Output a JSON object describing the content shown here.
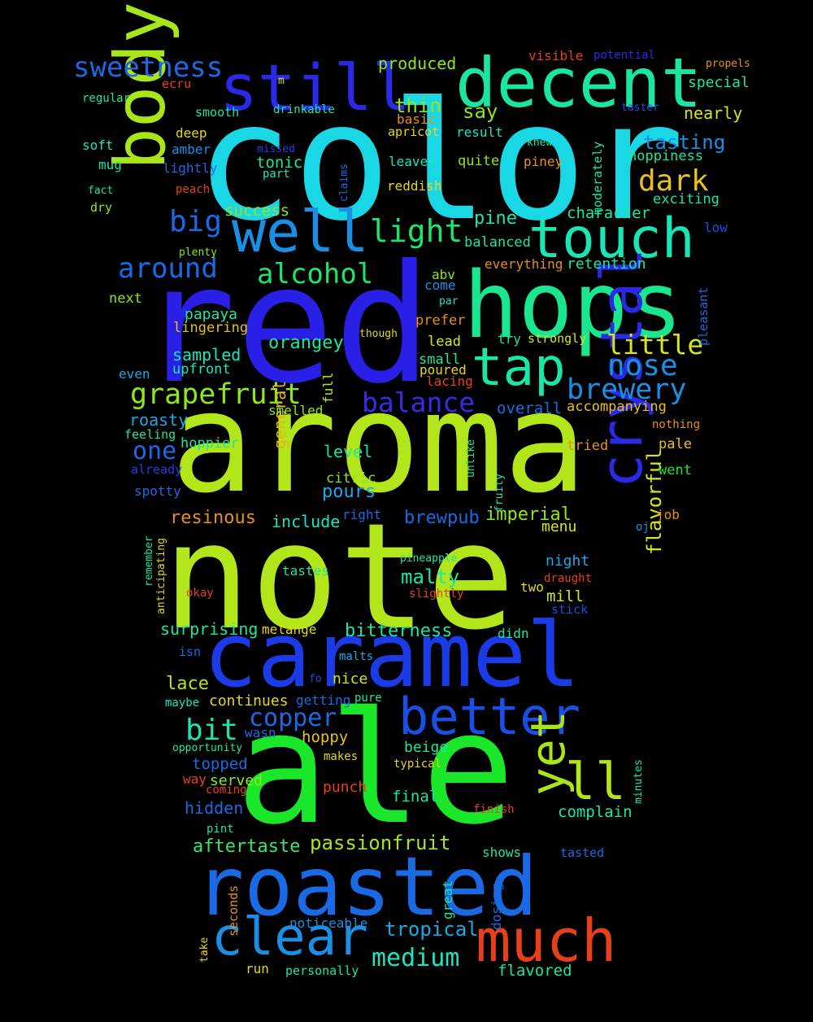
{
  "words": [
    {
      "text": "color",
      "color": "#1ad7e6"
    },
    {
      "text": "red",
      "color": "#2a1fe6"
    },
    {
      "text": "aroma",
      "color": "#b3e61a"
    },
    {
      "text": "note",
      "color": "#b3e61a"
    },
    {
      "text": "ale",
      "color": "#1ae62a"
    },
    {
      "text": "hops",
      "color": "#1ae68f"
    },
    {
      "text": "caramel",
      "color": "#1a3be6"
    },
    {
      "text": "roasted",
      "color": "#1a6ae6"
    },
    {
      "text": "decent",
      "color": "#1ae69f"
    },
    {
      "text": "still",
      "color": "#2a2ae6"
    },
    {
      "text": "body",
      "color": "#a8e61a"
    },
    {
      "text": "well",
      "color": "#1a8fe6"
    },
    {
      "text": "touch",
      "color": "#1ae6b3"
    },
    {
      "text": "tap",
      "color": "#1ae6a8"
    },
    {
      "text": "crystal",
      "color": "#2a2ae6"
    },
    {
      "text": "better",
      "color": "#1a4fe6"
    },
    {
      "text": "yet",
      "color": "#a8e61a"
    },
    {
      "text": "ll",
      "color": "#b3e61a"
    },
    {
      "text": "much",
      "color": "#e6401a"
    },
    {
      "text": "clear",
      "color": "#1a8fe6"
    },
    {
      "text": "sweetness",
      "color": "#1a6ae6"
    },
    {
      "text": "dark",
      "color": "#e6c21a"
    },
    {
      "text": "big",
      "color": "#1a6ae6"
    },
    {
      "text": "light",
      "color": "#1ae66a"
    },
    {
      "text": "around",
      "color": "#1a6ae6"
    },
    {
      "text": "alcohol",
      "color": "#1ae66a"
    },
    {
      "text": "grapefruit",
      "color": "#8fe61a"
    },
    {
      "text": "balance",
      "color": "#3a2ae6"
    },
    {
      "text": "little",
      "color": "#d7e61a"
    },
    {
      "text": "nose",
      "color": "#1a8fe6"
    },
    {
      "text": "brewery",
      "color": "#1a8fe6"
    },
    {
      "text": "one",
      "color": "#1a6ae6"
    },
    {
      "text": "bit",
      "color": "#1ae6b3"
    },
    {
      "text": "copper",
      "color": "#1a6ae6"
    },
    {
      "text": "medium",
      "color": "#1ae6c2"
    },
    {
      "text": "passionfruit",
      "color": "#a8e61a"
    },
    {
      "text": "aftertaste",
      "color": "#3ae66a"
    },
    {
      "text": "tropical",
      "color": "#1aa8e6"
    },
    {
      "text": "flavorful",
      "color": "#d7e61a"
    },
    {
      "text": "bitterness",
      "color": "#1ae6a8"
    },
    {
      "text": "malty",
      "color": "#1ae6a8"
    },
    {
      "text": "imperial",
      "color": "#8fe61a"
    },
    {
      "text": "brewpub",
      "color": "#1a6ae6"
    },
    {
      "text": "resinous",
      "color": "#e6901a"
    },
    {
      "text": "pours",
      "color": "#1aa8e6"
    },
    {
      "text": "orangey",
      "color": "#1ae69f"
    },
    {
      "text": "sampled",
      "color": "#1ae6c2"
    },
    {
      "text": "tasting",
      "color": "#1a8fe6"
    },
    {
      "text": "produced",
      "color": "#8fe61a"
    },
    {
      "text": "thin",
      "color": "#8fe61a"
    },
    {
      "text": "say",
      "color": "#8fe61a"
    },
    {
      "text": "pine",
      "color": "#1ae6b3"
    },
    {
      "text": "character",
      "color": "#1ae69f"
    },
    {
      "text": "success",
      "color": "#8fe61a"
    },
    {
      "text": "nearly",
      "color": "#d7e61a"
    },
    {
      "text": "special",
      "color": "#1ae69f"
    },
    {
      "text": "hoppiness",
      "color": "#1ae69f"
    },
    {
      "text": "exciting",
      "color": "#1ae6a8"
    },
    {
      "text": "retention",
      "color": "#1ae69f"
    },
    {
      "text": "balanced",
      "color": "#1ae69f"
    },
    {
      "text": "everything",
      "color": "#e6901a"
    },
    {
      "text": "accompanying",
      "color": "#e6c21a"
    },
    {
      "text": "general",
      "color": "#e6b31a"
    },
    {
      "text": "level",
      "color": "#1ae69f"
    },
    {
      "text": "citric",
      "color": "#8fe61a"
    },
    {
      "text": "include",
      "color": "#1ae6c2"
    },
    {
      "text": "roasty",
      "color": "#1aa8e6"
    },
    {
      "text": "hoppier",
      "color": "#1ae69f"
    },
    {
      "text": "surprising",
      "color": "#1ae69f"
    },
    {
      "text": "lace",
      "color": "#b3e61a"
    },
    {
      "text": "copper-nice",
      "color": "#d7e61a"
    },
    {
      "text": "continues",
      "color": "#e6d71a"
    },
    {
      "text": "hoppy",
      "color": "#e6c21a"
    },
    {
      "text": "topped",
      "color": "#1a6ae6"
    },
    {
      "text": "hidden",
      "color": "#1a6ae6"
    },
    {
      "text": "served",
      "color": "#8fe61a"
    },
    {
      "text": "punch",
      "color": "#e6401a"
    },
    {
      "text": "final",
      "color": "#1ae69f"
    },
    {
      "text": "complain",
      "color": "#1ae6a8"
    },
    {
      "text": "beige",
      "color": "#1ae69f"
    },
    {
      "text": "papaya",
      "color": "#1ae6a8"
    },
    {
      "text": "lingering",
      "color": "#e6c21a"
    },
    {
      "text": "upfront",
      "color": "#1ae6c2"
    },
    {
      "text": "next",
      "color": "#8fe61a"
    },
    {
      "text": "even",
      "color": "#1aa8e6"
    },
    {
      "text": "feeling",
      "color": "#1ae6a8"
    },
    {
      "text": "already",
      "color": "#2a3ae6"
    },
    {
      "text": "spotty",
      "color": "#1a6ae6"
    },
    {
      "text": "smelled",
      "color": "#8fe61a"
    },
    {
      "text": "full",
      "color": "#b3e61a"
    },
    {
      "text": "abv",
      "color": "#8fe61a"
    },
    {
      "text": "come",
      "color": "#1a8fe6"
    },
    {
      "text": "par",
      "color": "#1ae6c2"
    },
    {
      "text": "prefer",
      "color": "#e6901a"
    },
    {
      "text": "lead",
      "color": "#d7e61a"
    },
    {
      "text": "small",
      "color": "#1ae6a8"
    },
    {
      "text": "poured",
      "color": "#e6d71a"
    },
    {
      "text": "lacing",
      "color": "#e6401a"
    },
    {
      "text": "overall",
      "color": "#1a6ae6"
    },
    {
      "text": "try",
      "color": "#1ae69f"
    },
    {
      "text": "strongly",
      "color": "#d7e61a"
    },
    {
      "text": "tried",
      "color": "#e6901a"
    },
    {
      "text": "pale",
      "color": "#e6c21a"
    },
    {
      "text": "went",
      "color": "#1ae62a"
    },
    {
      "text": "nothing",
      "color": "#e6901a"
    },
    {
      "text": "job",
      "color": "#e6901a"
    },
    {
      "text": "oj",
      "color": "#1a8fe6"
    },
    {
      "text": "menu",
      "color": "#d7e61a"
    },
    {
      "text": "night",
      "color": "#1aa8e6"
    },
    {
      "text": "two",
      "color": "#e6d71a"
    },
    {
      "text": "draught",
      "color": "#e6401a"
    },
    {
      "text": "mill",
      "color": "#d7e61a"
    },
    {
      "text": "stick",
      "color": "#1a4fe6"
    },
    {
      "text": "slightly",
      "color": "#e6401a"
    },
    {
      "text": "tastes",
      "color": "#1ae69f"
    },
    {
      "text": "pineapple",
      "color": "#1ae6a8"
    },
    {
      "text": "melange",
      "color": "#e6d71a"
    },
    {
      "text": "didn",
      "color": "#1ae69f"
    },
    {
      "text": "isn",
      "color": "#1a6ae6"
    },
    {
      "text": "malts",
      "color": "#1aa8e6"
    },
    {
      "text": "fo",
      "color": "#1a4fe6"
    },
    {
      "text": "maybe",
      "color": "#1ae6c2"
    },
    {
      "text": "getting",
      "color": "#1a6ae6"
    },
    {
      "text": "pure",
      "color": "#1ae69f"
    },
    {
      "text": "wasn",
      "color": "#1a6ae6"
    },
    {
      "text": "opportunity",
      "color": "#1ae6a8"
    },
    {
      "text": "makes",
      "color": "#e6d71a"
    },
    {
      "text": "typical",
      "color": "#e6d71a"
    },
    {
      "text": "way",
      "color": "#e6401a"
    },
    {
      "text": "coming",
      "color": "#e6401a"
    },
    {
      "text": "finish",
      "color": "#e6401a"
    },
    {
      "text": "pint",
      "color": "#1ae69f"
    },
    {
      "text": "shows",
      "color": "#1ae69f"
    },
    {
      "text": "tasted",
      "color": "#1a6ae6"
    },
    {
      "text": "seconds",
      "color": "#e6901a"
    },
    {
      "text": "great",
      "color": "#1ae69f"
    },
    {
      "text": "dosing",
      "color": "#1a6ae6"
    },
    {
      "text": "noticeable",
      "color": "#1a8fe6"
    },
    {
      "text": "take",
      "color": "#e6d71a"
    },
    {
      "text": "run",
      "color": "#e6d71a"
    },
    {
      "text": "personally",
      "color": "#1ae6a8"
    },
    {
      "text": "flavored",
      "color": "#1ae69f"
    },
    {
      "text": "minutes",
      "color": "#1ae69f"
    },
    {
      "text": "anticipating",
      "color": "#e6d71a"
    },
    {
      "text": "remember",
      "color": "#1ae69f"
    },
    {
      "text": "okay",
      "color": "#e6401a"
    },
    {
      "text": "unlike",
      "color": "#1ae69f"
    },
    {
      "text": "fruity",
      "color": "#1ae6a8"
    },
    {
      "text": "right",
      "color": "#1a6ae6"
    },
    {
      "text": "though",
      "color": "#e6d71a"
    },
    {
      "text": "plenty",
      "color": "#8fe61a"
    },
    {
      "text": "pleasant",
      "color": "#1a6ae6"
    },
    {
      "text": "low",
      "color": "#1a4fe6"
    },
    {
      "text": "piney",
      "color": "#e6901a"
    },
    {
      "text": "knew",
      "color": "#1ae69f"
    },
    {
      "text": "moderately",
      "color": "#1ae6a8"
    },
    {
      "text": "quite",
      "color": "#8fe61a"
    },
    {
      "text": "leaves",
      "color": "#1ae6c2"
    },
    {
      "text": "reddish",
      "color": "#e6d71a"
    },
    {
      "text": "result",
      "color": "#1ae6c2"
    },
    {
      "text": "apricot",
      "color": "#e6d71a"
    },
    {
      "text": "basic",
      "color": "#e6901a"
    },
    {
      "text": "claims",
      "color": "#1a6ae6"
    },
    {
      "text": "part",
      "color": "#1ae6c2"
    },
    {
      "text": "tonic",
      "color": "#1ae69f"
    },
    {
      "text": "missed",
      "color": "#2a3ae6"
    },
    {
      "text": "lightly",
      "color": "#1a6ae6"
    },
    {
      "text": "peach",
      "color": "#e6401a"
    },
    {
      "text": "amber",
      "color": "#1a8fe6"
    },
    {
      "text": "deep",
      "color": "#e6d71a"
    },
    {
      "text": "smooth",
      "color": "#1ae69f"
    },
    {
      "text": "drinkable",
      "color": "#1ae6a8"
    },
    {
      "text": "m",
      "color": "#e6d71a"
    },
    {
      "text": "ecru",
      "color": "#e6401a"
    },
    {
      "text": "regular",
      "color": "#1ae69f"
    },
    {
      "text": "soft",
      "color": "#1ae6c2"
    },
    {
      "text": "mug",
      "color": "#1ae6a8"
    },
    {
      "text": "fact",
      "color": "#1ae6a8"
    },
    {
      "text": "dry",
      "color": "#8fe61a"
    },
    {
      "text": "visible",
      "color": "#e6401a"
    },
    {
      "text": "potential",
      "color": "#2a2ae6"
    },
    {
      "text": "propels",
      "color": "#e6901a"
    },
    {
      "text": "taster",
      "color": "#1a4fe6"
    }
  ]
}
